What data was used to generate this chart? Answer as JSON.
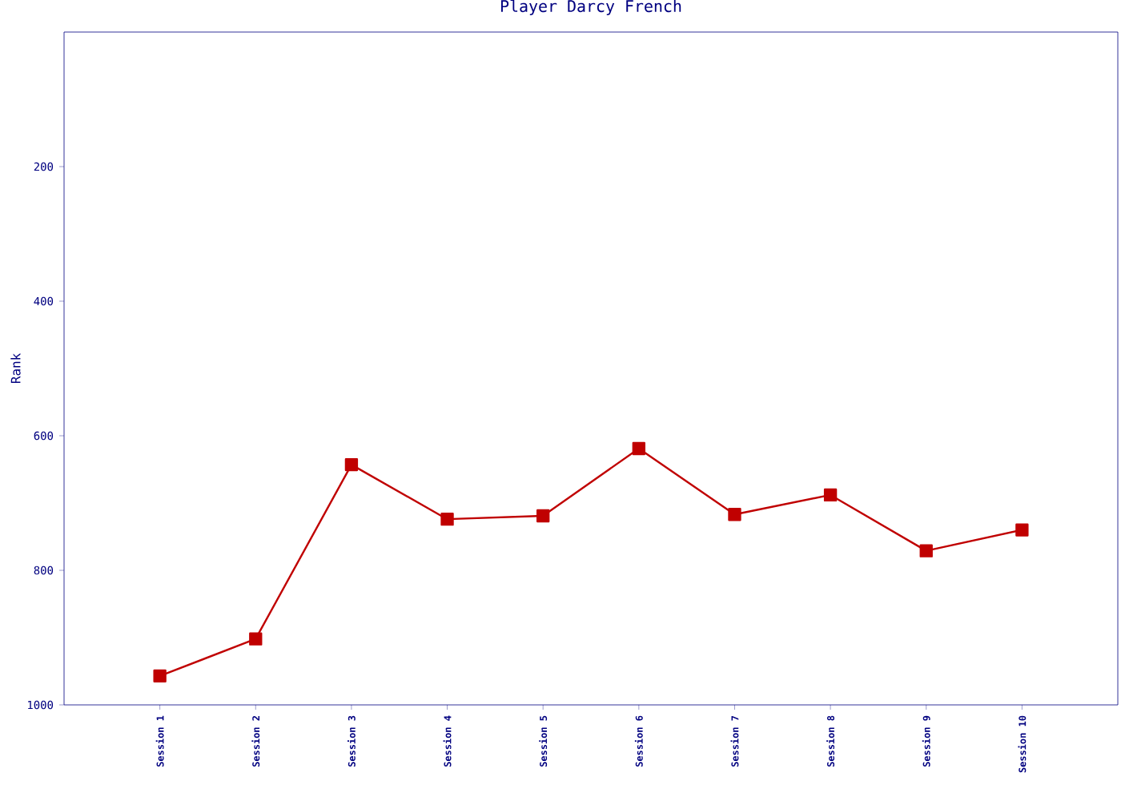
{
  "chart_data": {
    "type": "line",
    "title": "Player Darcy French",
    "ylabel": "Rank",
    "categories": [
      "Session 1",
      "Session 2",
      "Session 3",
      "Session 4",
      "Session 5",
      "Session 6",
      "Session 7",
      "Session 8",
      "Session 9",
      "Session 10"
    ],
    "series": [
      {
        "color": "#c00000",
        "values": [
          957,
          902,
          643,
          724,
          719,
          619,
          717,
          688,
          771,
          740
        ]
      }
    ],
    "ylim": [
      1000,
      0
    ],
    "yticks": [
      200,
      400,
      600,
      800,
      1000
    ],
    "marker": "square",
    "line_style": "solid",
    "grid": false
  }
}
